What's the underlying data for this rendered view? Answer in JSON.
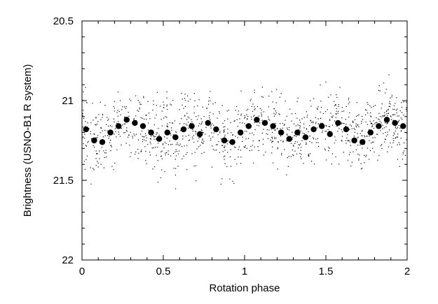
{
  "chart_data": {
    "type": "scatter",
    "title": "",
    "xlabel": "Rotation phase",
    "ylabel": "Brightness (USNO-B1 R system)",
    "xlim": [
      0,
      2
    ],
    "ylim": [
      20.5,
      22
    ],
    "y_inverted": true,
    "grid": false,
    "legend": "none",
    "x_ticks": [
      {
        "value": 0,
        "label": "0"
      },
      {
        "value": 0.5,
        "label": "0.5"
      },
      {
        "value": 1,
        "label": "1"
      },
      {
        "value": 1.5,
        "label": "1.5"
      },
      {
        "value": 2,
        "label": "2"
      }
    ],
    "y_ticks": [
      {
        "value": 20.5,
        "label": "20.5"
      },
      {
        "value": 21,
        "label": "21"
      },
      {
        "value": 21.5,
        "label": "21.5"
      },
      {
        "value": 22,
        "label": "22"
      }
    ],
    "series": [
      {
        "marker": "large-filled-circle",
        "color": "#000000",
        "x": [
          0.025,
          0.075,
          0.125,
          0.175,
          0.225,
          0.275,
          0.325,
          0.375,
          0.425,
          0.475,
          0.525,
          0.575,
          0.625,
          0.675,
          0.725,
          0.775,
          0.825,
          0.875,
          0.925,
          0.975,
          1.025,
          1.075,
          1.125,
          1.175,
          1.225,
          1.275,
          1.325,
          1.375,
          1.425,
          1.475,
          1.525,
          1.575,
          1.625,
          1.675,
          1.725,
          1.775,
          1.825,
          1.875,
          1.925,
          1.975
        ],
        "y": [
          21.18,
          21.25,
          21.26,
          21.2,
          21.16,
          21.12,
          21.14,
          21.16,
          21.2,
          21.24,
          21.2,
          21.23,
          21.18,
          21.16,
          21.21,
          21.14,
          21.18,
          21.25,
          21.26,
          21.2,
          21.16,
          21.12,
          21.14,
          21.16,
          21.2,
          21.24,
          21.2,
          21.23,
          21.18,
          21.16,
          21.21,
          21.14,
          21.18,
          21.25,
          21.26,
          21.2,
          21.16,
          21.12,
          21.14,
          21.16
        ]
      },
      {
        "marker": "small-dot",
        "color": "#000000",
        "description_points": "dense individual measurements scattered around the binned means, spread roughly 20.8 to 21.55",
        "count": 1200,
        "spread_range": [
          20.8,
          21.58
        ]
      }
    ]
  }
}
